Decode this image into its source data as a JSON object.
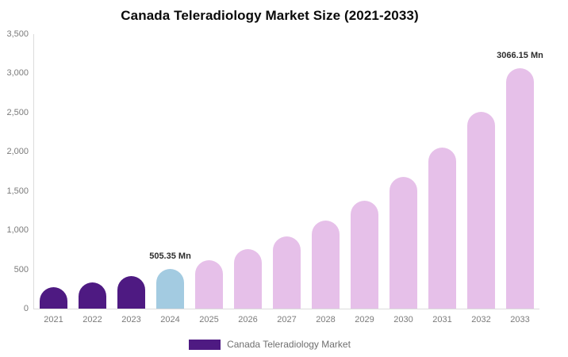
{
  "title": "Canada Teleradiology Market Size (2021-2033)",
  "chart_data": {
    "type": "bar",
    "title": "Canada Teleradiology Market Size (2021-2033)",
    "unit": "Mn",
    "categories": [
      "2021",
      "2022",
      "2023",
      "2024",
      "2025",
      "2026",
      "2027",
      "2028",
      "2029",
      "2030",
      "2031",
      "2032",
      "2033"
    ],
    "values": [
      277,
      338.5,
      413.6,
      505.35,
      617.4,
      754.4,
      921.7,
      1126.1,
      1375.9,
      1681.2,
      2054.1,
      2509.8,
      3066.15
    ],
    "bar_colors": [
      "#4e1a82",
      "#4e1a82",
      "#4e1a82",
      "#a3cbe1",
      "#e6c0e9",
      "#e6c0e9",
      "#e6c0e9",
      "#e6c0e9",
      "#e6c0e9",
      "#e6c0e9",
      "#e6c0e9",
      "#e6c0e9",
      "#e6c0e9"
    ],
    "ylim": [
      0,
      3500
    ],
    "yticks": [
      0,
      500,
      1000,
      1500,
      2000,
      2500,
      3000,
      3500
    ],
    "ytick_labels": [
      "0",
      "500",
      "1,000",
      "1,500",
      "2,000",
      "2,500",
      "3,000",
      "3,500"
    ],
    "grid": false,
    "annotations": [
      {
        "category": "2024",
        "text": "505.35 Mn"
      },
      {
        "category": "2033",
        "text": "3066.15 Mn"
      }
    ],
    "legend_position": "bottom",
    "legend": [
      {
        "label": "Canada Teleradiology Market",
        "color": "#4e1a82"
      }
    ],
    "axis_line_color": "#dcdcdc",
    "tick_label_color": "#7b7b7b"
  }
}
